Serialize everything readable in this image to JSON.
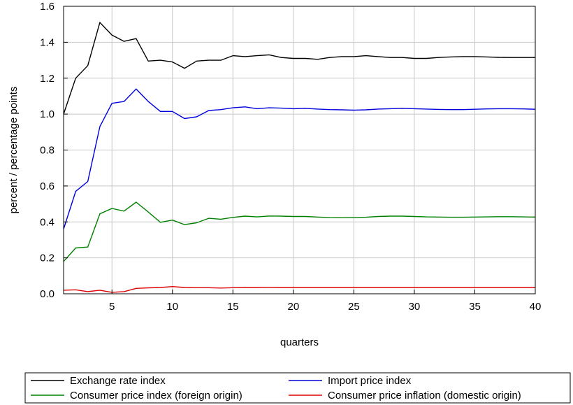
{
  "chart_data": {
    "type": "line",
    "title": "",
    "xlabel": "quarters",
    "ylabel": "percent / percentage points",
    "xlim": [
      1,
      40
    ],
    "ylim": [
      0,
      1.6
    ],
    "xticks": [
      5,
      10,
      15,
      20,
      25,
      30,
      35,
      40
    ],
    "yticks": [
      0.0,
      0.2,
      0.4,
      0.6,
      0.8,
      1.0,
      1.2,
      1.4,
      1.6
    ],
    "ytick_labels": [
      "0.0",
      "0.2",
      "0.4",
      "0.6",
      "0.8",
      "1.0",
      "1.2",
      "1.4",
      "1.6"
    ],
    "grid": true,
    "legend_position": "bottom",
    "x": [
      1,
      2,
      3,
      4,
      5,
      6,
      7,
      8,
      9,
      10,
      11,
      12,
      13,
      14,
      15,
      16,
      17,
      18,
      19,
      20,
      21,
      22,
      23,
      24,
      25,
      26,
      27,
      28,
      29,
      30,
      31,
      32,
      33,
      34,
      35,
      36,
      37,
      38,
      39,
      40
    ],
    "series": [
      {
        "name": "Exchange rate index",
        "color": "#000000",
        "values": [
          1.0,
          1.2,
          1.27,
          1.51,
          1.44,
          1.405,
          1.42,
          1.295,
          1.3,
          1.29,
          1.255,
          1.295,
          1.3,
          1.3,
          1.325,
          1.32,
          1.325,
          1.33,
          1.315,
          1.31,
          1.31,
          1.305,
          1.315,
          1.32,
          1.32,
          1.325,
          1.32,
          1.315,
          1.315,
          1.31,
          1.31,
          1.315,
          1.318,
          1.32,
          1.32,
          1.318,
          1.316,
          1.315,
          1.315,
          1.315
        ]
      },
      {
        "name": "Import price index",
        "color": "#0000dd",
        "values": [
          0.36,
          0.57,
          0.625,
          0.93,
          1.06,
          1.07,
          1.14,
          1.07,
          1.015,
          1.015,
          0.975,
          0.985,
          1.02,
          1.025,
          1.035,
          1.04,
          1.03,
          1.035,
          1.033,
          1.03,
          1.032,
          1.028,
          1.025,
          1.024,
          1.022,
          1.024,
          1.028,
          1.03,
          1.032,
          1.03,
          1.028,
          1.026,
          1.025,
          1.025,
          1.027,
          1.029,
          1.03,
          1.03,
          1.029,
          1.027
        ]
      },
      {
        "name": "Consumer price index (foreign origin)",
        "color": "#008000",
        "values": [
          0.18,
          0.255,
          0.26,
          0.445,
          0.475,
          0.46,
          0.51,
          0.455,
          0.398,
          0.41,
          0.385,
          0.395,
          0.42,
          0.415,
          0.425,
          0.432,
          0.428,
          0.433,
          0.432,
          0.43,
          0.43,
          0.427,
          0.424,
          0.423,
          0.424,
          0.426,
          0.43,
          0.432,
          0.432,
          0.43,
          0.428,
          0.427,
          0.426,
          0.426,
          0.427,
          0.428,
          0.429,
          0.429,
          0.428,
          0.427
        ]
      },
      {
        "name": "Consumer price inflation (domestic origin)",
        "color": "#dd0000",
        "values": [
          0.02,
          0.022,
          0.012,
          0.02,
          0.008,
          0.012,
          0.03,
          0.033,
          0.035,
          0.04,
          0.035,
          0.034,
          0.034,
          0.032,
          0.034,
          0.035,
          0.035,
          0.036,
          0.035,
          0.035,
          0.035,
          0.035,
          0.035,
          0.035,
          0.035,
          0.035,
          0.035,
          0.035,
          0.035,
          0.035,
          0.035,
          0.035,
          0.035,
          0.035,
          0.035,
          0.035,
          0.035,
          0.035,
          0.035,
          0.035
        ]
      }
    ]
  }
}
